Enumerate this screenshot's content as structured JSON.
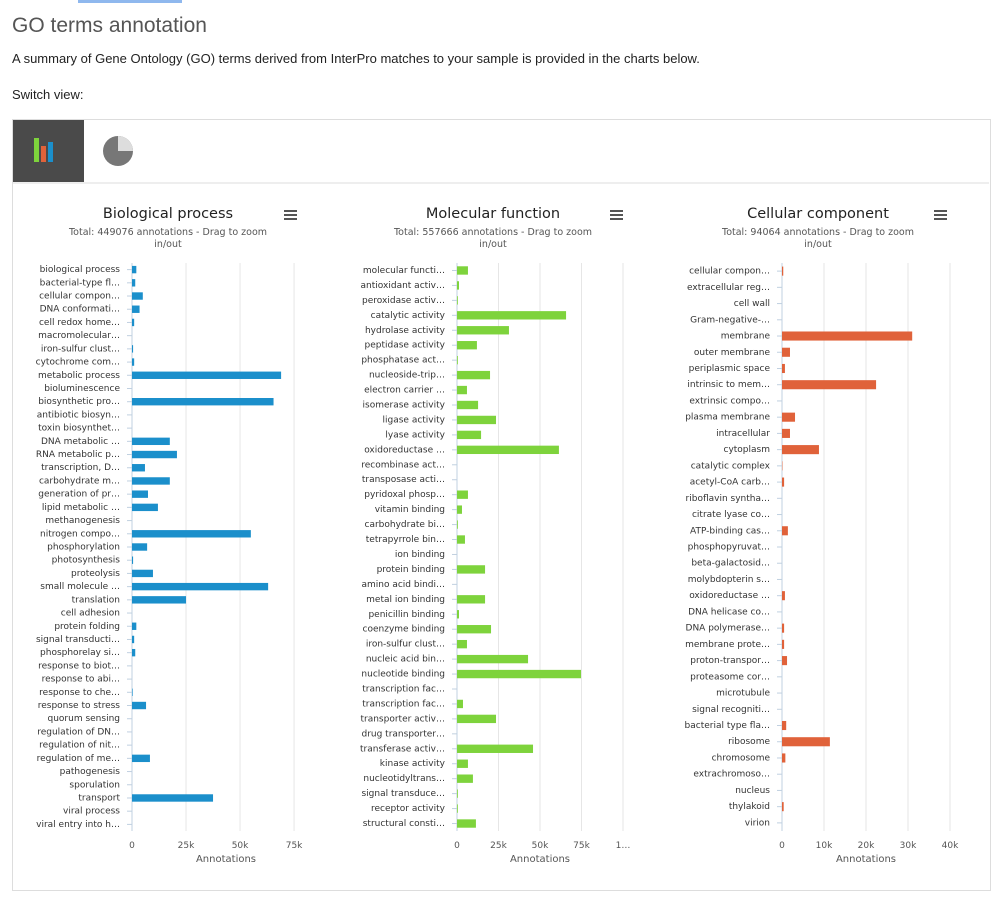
{
  "header": {
    "title": "GO terms annotation",
    "description": "A summary of Gene Ontology (GO) terms derived from InterPro matches to your sample is provided in the charts below.",
    "switch_label": "Switch view:"
  },
  "chart_data": [
    {
      "type": "bar",
      "title": "Biological process",
      "subtitle": "Total: 449076 annotations - Drag to zoom in/out",
      "xlabel": "Annotations",
      "color": "#1b8fcb",
      "grid": true,
      "categories": [
        "biological process",
        "bacterial-type fl…",
        "cellular compon…",
        "DNA conformati…",
        "cell redox home…",
        "macromolecular…",
        "iron-sulfur clust…",
        "cytochrome com…",
        "metabolic process",
        "bioluminescence",
        "biosynthetic pro…",
        "antibiotic biosyn…",
        "toxin biosynthet…",
        "DNA metabolic …",
        "RNA metabolic p…",
        "transcription, D…",
        "carbohydrate m…",
        "generation of pr…",
        "lipid metabolic …",
        "methanogenesis",
        "nitrogen compo…",
        "phosphorylation",
        "photosynthesis",
        "proteolysis",
        "small molecule …",
        "translation",
        "cell adhesion",
        "protein folding",
        "signal transducti…",
        "phosphorelay si…",
        "response to biot…",
        "response to abi…",
        "response to che…",
        "response to stress",
        "quorum sensing",
        "regulation of DN…",
        "regulation of nit…",
        "regulation of me…",
        "pathogenesis",
        "sporulation",
        "transport",
        "viral process",
        "viral entry into h…"
      ],
      "values": [
        2000,
        1500,
        5000,
        3500,
        1000,
        0,
        500,
        1000,
        69000,
        0,
        65500,
        0,
        0,
        17500,
        20800,
        6000,
        17500,
        7400,
        12000,
        0,
        55000,
        7000,
        500,
        9700,
        63000,
        25000,
        0,
        2000,
        1000,
        1500,
        0,
        0,
        300,
        6500,
        0,
        0,
        0,
        8300,
        0,
        0,
        37500,
        0,
        0
      ],
      "xlim": [
        0,
        87000
      ],
      "xticks": [
        0,
        {
          "value": 25000,
          "label": "25k"
        },
        {
          "value": 50000,
          "label": "50k"
        },
        {
          "value": 75000,
          "label": "75k"
        }
      ]
    },
    {
      "type": "bar",
      "title": "Molecular function",
      "subtitle": "Total: 557666 annotations - Drag to zoom in/out",
      "xlabel": "Annotations",
      "color": "#7ed33c",
      "grid": true,
      "categories": [
        "molecular functi…",
        "antioxidant activ…",
        "peroxidase activ…",
        "catalytic activity",
        "hydrolase activity",
        "peptidase activity",
        "phosphatase act…",
        "nucleoside-trip…",
        "electron carrier …",
        "isomerase activity",
        "ligase activity",
        "lyase activity",
        "oxidoreductase …",
        "recombinase act…",
        "transposase acti…",
        "pyridoxal phosp…",
        "vitamin binding",
        "carbohydrate bi…",
        "tetrapyrrole bin…",
        "ion binding",
        "protein binding",
        "amino acid bindi…",
        "metal ion binding",
        "penicillin binding",
        "coenzyme binding",
        "iron-sulfur clust…",
        "nucleic acid bin…",
        "nucleotide binding",
        "transcription fac…",
        "transcription fac…",
        "transporter activ…",
        "drug transporter…",
        "transferase activ…",
        "kinase activity",
        "nucleotidyltrans…",
        "signal transduce…",
        "receptor activity",
        "structural consti…"
      ],
      "values": [
        6600,
        1200,
        500,
        65700,
        31300,
        12000,
        500,
        19900,
        6000,
        12700,
        23500,
        14500,
        61400,
        0,
        0,
        6600,
        3000,
        500,
        4800,
        0,
        16900,
        0,
        16900,
        1200,
        20500,
        6000,
        42800,
        74700,
        0,
        3600,
        23500,
        0,
        45800,
        6600,
        9600,
        500,
        500,
        11400
      ],
      "xlim": [
        0,
        100000
      ],
      "xticks": [
        0,
        {
          "value": 25000,
          "label": "25k"
        },
        {
          "value": 50000,
          "label": "50k"
        },
        {
          "value": 75000,
          "label": "75k"
        },
        {
          "value": 100000,
          "label": "1…"
        }
      ]
    },
    {
      "type": "bar",
      "title": "Cellular component",
      "subtitle": "Total: 94064 annotations - Drag to zoom in/out",
      "xlabel": "Annotations",
      "color": "#e0623a",
      "grid": true,
      "categories": [
        "cellular compon…",
        "extracellular reg…",
        "cell wall",
        "Gram-negative-…",
        "membrane",
        "outer membrane",
        "periplasmic space",
        "intrinsic to mem…",
        "extrinsic compo…",
        "plasma membrane",
        "intracellular",
        "cytoplasm",
        "catalytic complex",
        "acetyl-CoA carb…",
        "riboflavin syntha…",
        "citrate lyase co…",
        "ATP-binding cas…",
        "phosphopyruvat…",
        "beta-galactosid…",
        "molybdopterin s…",
        "oxidoreductase …",
        "DNA helicase co…",
        "DNA polymerase…",
        "membrane prote…",
        "proton-transpor…",
        "proteasome cor…",
        "microtubule",
        "signal recogniti…",
        "bacterial type fla…",
        "ribosome",
        "chromosome",
        "extrachromoso…",
        "nucleus",
        "thylakoid",
        "virion"
      ],
      "values": [
        300,
        0,
        0,
        0,
        31000,
        1900,
        700,
        22400,
        0,
        3100,
        1900,
        8800,
        100,
        500,
        0,
        0,
        1400,
        0,
        0,
        0,
        700,
        0,
        500,
        500,
        1200,
        0,
        0,
        0,
        1000,
        11400,
        800,
        0,
        0,
        400,
        0
      ],
      "xlim": [
        0,
        40000
      ],
      "xticks": [
        0,
        {
          "value": 10000,
          "label": "10k"
        },
        {
          "value": 20000,
          "label": "20k"
        },
        {
          "value": 30000,
          "label": "30k"
        },
        {
          "value": 40000,
          "label": "40k"
        }
      ]
    }
  ]
}
